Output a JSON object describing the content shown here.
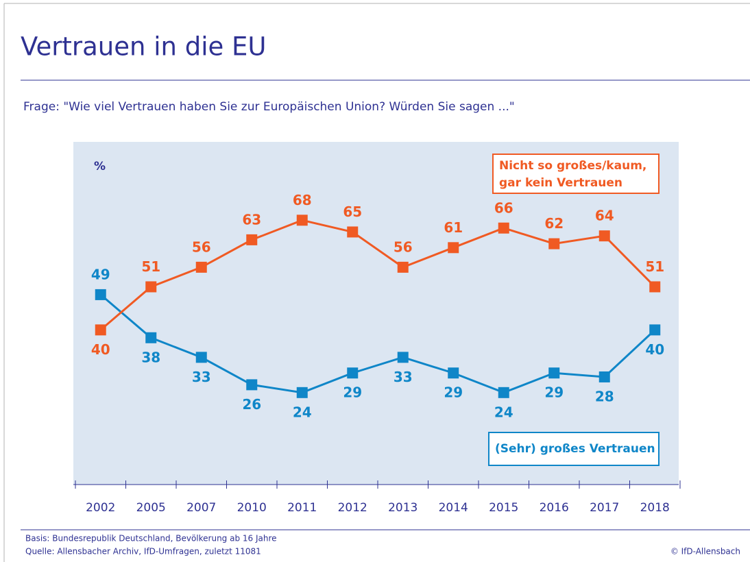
{
  "chart_data": {
    "type": "line",
    "title": "Vertrauen in die EU",
    "subtitle": "Frage: \"Wie viel Vertrauen haben Sie zur Europäischen Union? Würden Sie sagen ...\"",
    "y_label": "%",
    "categories": [
      "2002",
      "2005",
      "2007",
      "2010",
      "2011",
      "2012",
      "2013",
      "2014",
      "2015",
      "2016",
      "2017",
      "2018"
    ],
    "series": [
      {
        "name": "(Sehr) großes Vertrauen",
        "color": "#0f86c8",
        "values": [
          49,
          38,
          33,
          26,
          24,
          29,
          33,
          29,
          24,
          29,
          28,
          40
        ]
      },
      {
        "name": "Nicht so großes/kaum, gar kein Vertrauen",
        "color": "#f05a23",
        "values": [
          40,
          51,
          56,
          63,
          68,
          65,
          56,
          61,
          66,
          62,
          64,
          51
        ]
      }
    ],
    "ylim": [
      0,
      88
    ],
    "footnotes": [
      "Basis: Bundesrepublik Deutschland, Bevölkerung ab 16 Jahre",
      "Quelle: Allensbacher Archiv, IfD-Umfragen, zuletzt 11081"
    ],
    "copyright": "© IfD-Allensbach"
  }
}
